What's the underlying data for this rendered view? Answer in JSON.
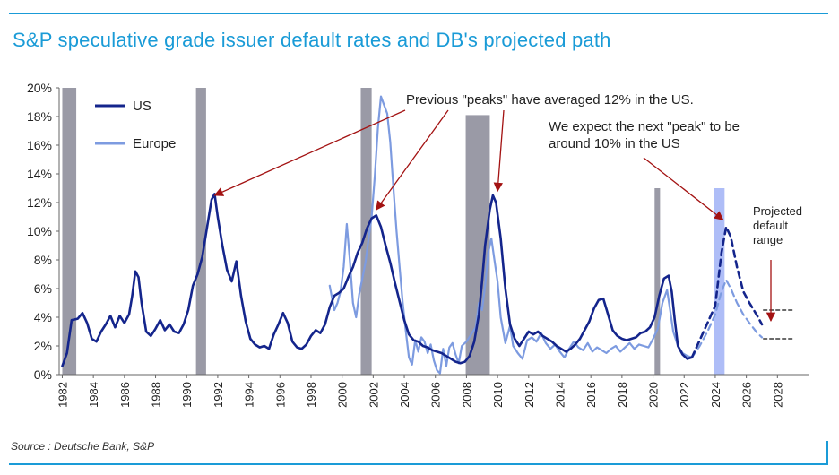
{
  "title": "S&P speculative grade issuer default rates and DB's projected path",
  "source": "Source : Deutsche Bank, S&P",
  "colors": {
    "accent": "#1a9bd7",
    "us": "#14258c",
    "europe": "#7d9be0",
    "recession": "#9a9aa6",
    "projection_band": "#aebdf7",
    "annotation_arrow": "#a31212"
  },
  "chart_data": {
    "type": "line",
    "xlabel": "",
    "ylabel": "",
    "xlim": [
      1982,
      2030
    ],
    "ylim": [
      0,
      20
    ],
    "x_ticks": [
      "1982",
      "1984",
      "1986",
      "1988",
      "1990",
      "1992",
      "1994",
      "1996",
      "1998",
      "2000",
      "2002",
      "2004",
      "2006",
      "2008",
      "2010",
      "2012",
      "2014",
      "2016",
      "2018",
      "2020",
      "2022",
      "2024",
      "2026",
      "2028"
    ],
    "y_ticks": [
      "0%",
      "2%",
      "4%",
      "6%",
      "8%",
      "10%",
      "12%",
      "14%",
      "16%",
      "18%",
      "20%"
    ],
    "legend": {
      "position": "top-left",
      "entries": [
        "US",
        "Europe"
      ]
    },
    "recession_shading": [
      {
        "start": 1982.0,
        "end": 1982.9,
        "top": 20
      },
      {
        "start": 1990.6,
        "end": 1991.25,
        "top": 20
      },
      {
        "start": 2001.2,
        "end": 2001.9,
        "top": 20
      },
      {
        "start": 2007.95,
        "end": 2009.5,
        "top": 18.1
      },
      {
        "start": 2020.1,
        "end": 2020.45,
        "top": 13
      }
    ],
    "projection_band": {
      "start": 2023.9,
      "end": 2024.6,
      "top": 13
    },
    "series": [
      {
        "name": "US",
        "style": "solid",
        "points": [
          [
            1982.0,
            0.6
          ],
          [
            1982.3,
            1.5
          ],
          [
            1982.6,
            3.8
          ],
          [
            1983.0,
            3.9
          ],
          [
            1983.3,
            4.3
          ],
          [
            1983.6,
            3.6
          ],
          [
            1983.9,
            2.5
          ],
          [
            1984.2,
            2.3
          ],
          [
            1984.5,
            3.0
          ],
          [
            1984.8,
            3.5
          ],
          [
            1985.1,
            4.1
          ],
          [
            1985.4,
            3.3
          ],
          [
            1985.7,
            4.1
          ],
          [
            1986.0,
            3.6
          ],
          [
            1986.3,
            4.2
          ],
          [
            1986.5,
            5.5
          ],
          [
            1986.7,
            7.2
          ],
          [
            1986.9,
            6.8
          ],
          [
            1987.1,
            5.0
          ],
          [
            1987.4,
            3.0
          ],
          [
            1987.7,
            2.7
          ],
          [
            1988.0,
            3.2
          ],
          [
            1988.3,
            3.8
          ],
          [
            1988.6,
            3.1
          ],
          [
            1988.9,
            3.5
          ],
          [
            1989.2,
            3.0
          ],
          [
            1989.5,
            2.9
          ],
          [
            1989.8,
            3.5
          ],
          [
            1990.1,
            4.5
          ],
          [
            1990.4,
            6.2
          ],
          [
            1990.7,
            7.0
          ],
          [
            1991.0,
            8.2
          ],
          [
            1991.3,
            10.2
          ],
          [
            1991.6,
            12.2
          ],
          [
            1991.8,
            12.6
          ],
          [
            1992.0,
            11.0
          ],
          [
            1992.3,
            9.0
          ],
          [
            1992.6,
            7.3
          ],
          [
            1992.9,
            6.5
          ],
          [
            1993.2,
            7.9
          ],
          [
            1993.5,
            5.5
          ],
          [
            1993.8,
            3.7
          ],
          [
            1994.1,
            2.5
          ],
          [
            1994.4,
            2.1
          ],
          [
            1994.7,
            1.9
          ],
          [
            1995.0,
            2.0
          ],
          [
            1995.3,
            1.8
          ],
          [
            1995.6,
            2.8
          ],
          [
            1995.9,
            3.5
          ],
          [
            1996.2,
            4.3
          ],
          [
            1996.5,
            3.6
          ],
          [
            1996.8,
            2.3
          ],
          [
            1997.1,
            1.9
          ],
          [
            1997.4,
            1.8
          ],
          [
            1997.7,
            2.1
          ],
          [
            1998.0,
            2.7
          ],
          [
            1998.3,
            3.1
          ],
          [
            1998.6,
            2.9
          ],
          [
            1998.9,
            3.5
          ],
          [
            1999.2,
            4.7
          ],
          [
            1999.5,
            5.5
          ],
          [
            1999.8,
            5.7
          ],
          [
            2000.1,
            6.0
          ],
          [
            2000.4,
            6.8
          ],
          [
            2000.7,
            7.5
          ],
          [
            2001.0,
            8.5
          ],
          [
            2001.3,
            9.2
          ],
          [
            2001.6,
            10.2
          ],
          [
            2001.9,
            10.9
          ],
          [
            2002.2,
            11.1
          ],
          [
            2002.5,
            10.3
          ],
          [
            2002.8,
            9.0
          ],
          [
            2003.1,
            7.8
          ],
          [
            2003.4,
            6.4
          ],
          [
            2003.7,
            5.1
          ],
          [
            2004.0,
            3.8
          ],
          [
            2004.3,
            2.8
          ],
          [
            2004.6,
            2.4
          ],
          [
            2004.9,
            2.3
          ],
          [
            2005.2,
            2.0
          ],
          [
            2005.5,
            1.9
          ],
          [
            2005.8,
            1.7
          ],
          [
            2006.1,
            1.6
          ],
          [
            2006.4,
            1.5
          ],
          [
            2006.7,
            1.3
          ],
          [
            2007.0,
            1.1
          ],
          [
            2007.3,
            0.9
          ],
          [
            2007.6,
            0.8
          ],
          [
            2007.9,
            0.9
          ],
          [
            2008.2,
            1.3
          ],
          [
            2008.5,
            2.3
          ],
          [
            2008.8,
            4.2
          ],
          [
            2009.0,
            6.5
          ],
          [
            2009.2,
            9.0
          ],
          [
            2009.5,
            11.5
          ],
          [
            2009.7,
            12.5
          ],
          [
            2009.9,
            12.0
          ],
          [
            2010.2,
            9.5
          ],
          [
            2010.5,
            6.0
          ],
          [
            2010.8,
            3.5
          ],
          [
            2011.1,
            2.5
          ],
          [
            2011.4,
            2.0
          ],
          [
            2011.7,
            2.5
          ],
          [
            2012.0,
            3.0
          ],
          [
            2012.3,
            2.8
          ],
          [
            2012.6,
            3.0
          ],
          [
            2012.9,
            2.7
          ],
          [
            2013.2,
            2.5
          ],
          [
            2013.5,
            2.3
          ],
          [
            2013.8,
            2.0
          ],
          [
            2014.1,
            1.8
          ],
          [
            2014.4,
            1.6
          ],
          [
            2014.7,
            1.8
          ],
          [
            2015.0,
            2.1
          ],
          [
            2015.3,
            2.5
          ],
          [
            2015.6,
            3.1
          ],
          [
            2015.9,
            3.7
          ],
          [
            2016.2,
            4.6
          ],
          [
            2016.5,
            5.2
          ],
          [
            2016.8,
            5.3
          ],
          [
            2017.1,
            4.2
          ],
          [
            2017.4,
            3.1
          ],
          [
            2017.7,
            2.7
          ],
          [
            2018.0,
            2.5
          ],
          [
            2018.3,
            2.4
          ],
          [
            2018.6,
            2.5
          ],
          [
            2018.9,
            2.6
          ],
          [
            2019.2,
            2.9
          ],
          [
            2019.5,
            3.0
          ],
          [
            2019.8,
            3.3
          ],
          [
            2020.1,
            4.0
          ],
          [
            2020.4,
            5.5
          ],
          [
            2020.7,
            6.7
          ],
          [
            2021.0,
            6.9
          ],
          [
            2021.2,
            5.8
          ],
          [
            2021.4,
            3.8
          ],
          [
            2021.6,
            2.0
          ],
          [
            2021.9,
            1.4
          ],
          [
            2022.2,
            1.1
          ],
          [
            2022.5,
            1.2
          ]
        ]
      },
      {
        "name": "US projection",
        "style": "dashed",
        "points": [
          [
            2022.5,
            1.2
          ],
          [
            2023.0,
            2.4
          ],
          [
            2023.5,
            3.6
          ],
          [
            2024.0,
            4.8
          ],
          [
            2024.4,
            8.5
          ],
          [
            2024.7,
            10.3
          ],
          [
            2025.0,
            9.6
          ],
          [
            2025.4,
            7.5
          ],
          [
            2025.8,
            5.8
          ],
          [
            2026.2,
            5.0
          ],
          [
            2026.7,
            4.1
          ],
          [
            2027.0,
            3.5
          ]
        ]
      },
      {
        "name": "Europe",
        "style": "solid",
        "points": [
          [
            1999.2,
            6.2
          ],
          [
            1999.5,
            4.5
          ],
          [
            1999.7,
            5.0
          ],
          [
            1999.9,
            5.8
          ],
          [
            2000.1,
            7.5
          ],
          [
            2000.3,
            10.5
          ],
          [
            2000.5,
            8.0
          ],
          [
            2000.7,
            5.0
          ],
          [
            2000.9,
            4.0
          ],
          [
            2001.1,
            5.6
          ],
          [
            2001.3,
            6.7
          ],
          [
            2001.5,
            7.8
          ],
          [
            2001.7,
            9.5
          ],
          [
            2001.9,
            11.0
          ],
          [
            2002.1,
            13.8
          ],
          [
            2002.3,
            17.2
          ],
          [
            2002.5,
            19.4
          ],
          [
            2002.7,
            18.8
          ],
          [
            2002.9,
            18.2
          ],
          [
            2003.1,
            16.2
          ],
          [
            2003.3,
            13.0
          ],
          [
            2003.5,
            10.0
          ],
          [
            2003.7,
            7.5
          ],
          [
            2003.9,
            5.0
          ],
          [
            2004.1,
            3.0
          ],
          [
            2004.3,
            1.2
          ],
          [
            2004.5,
            0.7
          ],
          [
            2004.7,
            2.4
          ],
          [
            2004.9,
            1.6
          ],
          [
            2005.1,
            2.6
          ],
          [
            2005.3,
            2.3
          ],
          [
            2005.5,
            1.5
          ],
          [
            2005.7,
            2.1
          ],
          [
            2005.9,
            1.0
          ],
          [
            2006.1,
            0.3
          ],
          [
            2006.3,
            0.1
          ],
          [
            2006.5,
            1.8
          ],
          [
            2006.7,
            0.6
          ],
          [
            2006.9,
            1.9
          ],
          [
            2007.1,
            2.2
          ],
          [
            2007.3,
            1.4
          ],
          [
            2007.5,
            0.8
          ],
          [
            2007.7,
            2.0
          ],
          [
            2008.0,
            2.3
          ],
          [
            2008.3,
            2.8
          ],
          [
            2008.6,
            3.3
          ],
          [
            2008.8,
            5.0
          ],
          [
            2009.0,
            4.5
          ],
          [
            2009.2,
            6.2
          ],
          [
            2009.4,
            8.5
          ],
          [
            2009.6,
            9.5
          ],
          [
            2009.8,
            8.0
          ],
          [
            2010.0,
            6.5
          ],
          [
            2010.2,
            4.0
          ],
          [
            2010.5,
            2.2
          ],
          [
            2010.8,
            3.4
          ],
          [
            2011.0,
            2.0
          ],
          [
            2011.3,
            1.5
          ],
          [
            2011.6,
            1.1
          ],
          [
            2011.9,
            2.4
          ],
          [
            2012.2,
            2.6
          ],
          [
            2012.5,
            2.3
          ],
          [
            2012.8,
            2.9
          ],
          [
            2013.1,
            2.2
          ],
          [
            2013.4,
            1.8
          ],
          [
            2013.7,
            2.1
          ],
          [
            2014.0,
            1.6
          ],
          [
            2014.3,
            1.2
          ],
          [
            2014.6,
            1.8
          ],
          [
            2014.9,
            2.3
          ],
          [
            2015.2,
            1.9
          ],
          [
            2015.5,
            1.7
          ],
          [
            2015.8,
            2.2
          ],
          [
            2016.1,
            1.6
          ],
          [
            2016.4,
            1.9
          ],
          [
            2016.7,
            1.7
          ],
          [
            2017.0,
            1.5
          ],
          [
            2017.3,
            1.8
          ],
          [
            2017.6,
            2.0
          ],
          [
            2017.9,
            1.6
          ],
          [
            2018.2,
            1.9
          ],
          [
            2018.5,
            2.2
          ],
          [
            2018.8,
            1.8
          ],
          [
            2019.1,
            2.1
          ],
          [
            2019.4,
            2.0
          ],
          [
            2019.7,
            1.9
          ],
          [
            2020.0,
            2.5
          ],
          [
            2020.3,
            3.2
          ],
          [
            2020.6,
            5.0
          ],
          [
            2020.9,
            5.9
          ],
          [
            2021.1,
            4.5
          ],
          [
            2021.3,
            3.0
          ],
          [
            2021.6,
            2.0
          ],
          [
            2021.9,
            1.5
          ],
          [
            2022.2,
            1.3
          ],
          [
            2022.5,
            1.2
          ]
        ]
      },
      {
        "name": "Europe projection",
        "style": "dashed",
        "points": [
          [
            2022.5,
            1.2
          ],
          [
            2023.0,
            2.0
          ],
          [
            2023.5,
            3.0
          ],
          [
            2024.0,
            4.2
          ],
          [
            2024.4,
            5.8
          ],
          [
            2024.7,
            6.6
          ],
          [
            2025.0,
            6.0
          ],
          [
            2025.4,
            5.0
          ],
          [
            2025.8,
            4.2
          ],
          [
            2026.2,
            3.6
          ],
          [
            2026.7,
            2.9
          ],
          [
            2027.0,
            2.6
          ]
        ]
      },
      {
        "name": "Projected default range upper",
        "style": "dashed",
        "points": [
          [
            2027.1,
            4.5
          ],
          [
            2029.0,
            4.5
          ]
        ]
      },
      {
        "name": "Projected default range lower",
        "style": "dashed",
        "points": [
          [
            2027.1,
            2.5
          ],
          [
            2029.0,
            2.5
          ]
        ]
      }
    ],
    "annotations": [
      {
        "text": "Previous \"peaks\" have averaged 12% in the US.",
        "lines": [
          "Previous \"peaks\" have averaged 12% in the US."
        ],
        "targets": [
          [
            1991.8,
            12.5
          ],
          [
            2002.2,
            11.5
          ],
          [
            2010.0,
            12.8
          ]
        ]
      },
      {
        "text": "We expect the next \"peak\" to be around 10% in the US",
        "lines": [
          "We expect the next \"peak\" to be",
          "around 10% in the US"
        ],
        "targets": [
          [
            2024.5,
            10.8
          ]
        ]
      },
      {
        "text": "Projected default range",
        "lines": [
          "Projected",
          "default",
          "range"
        ],
        "targets": [
          [
            2027.9,
            5.5
          ]
        ]
      }
    ]
  }
}
